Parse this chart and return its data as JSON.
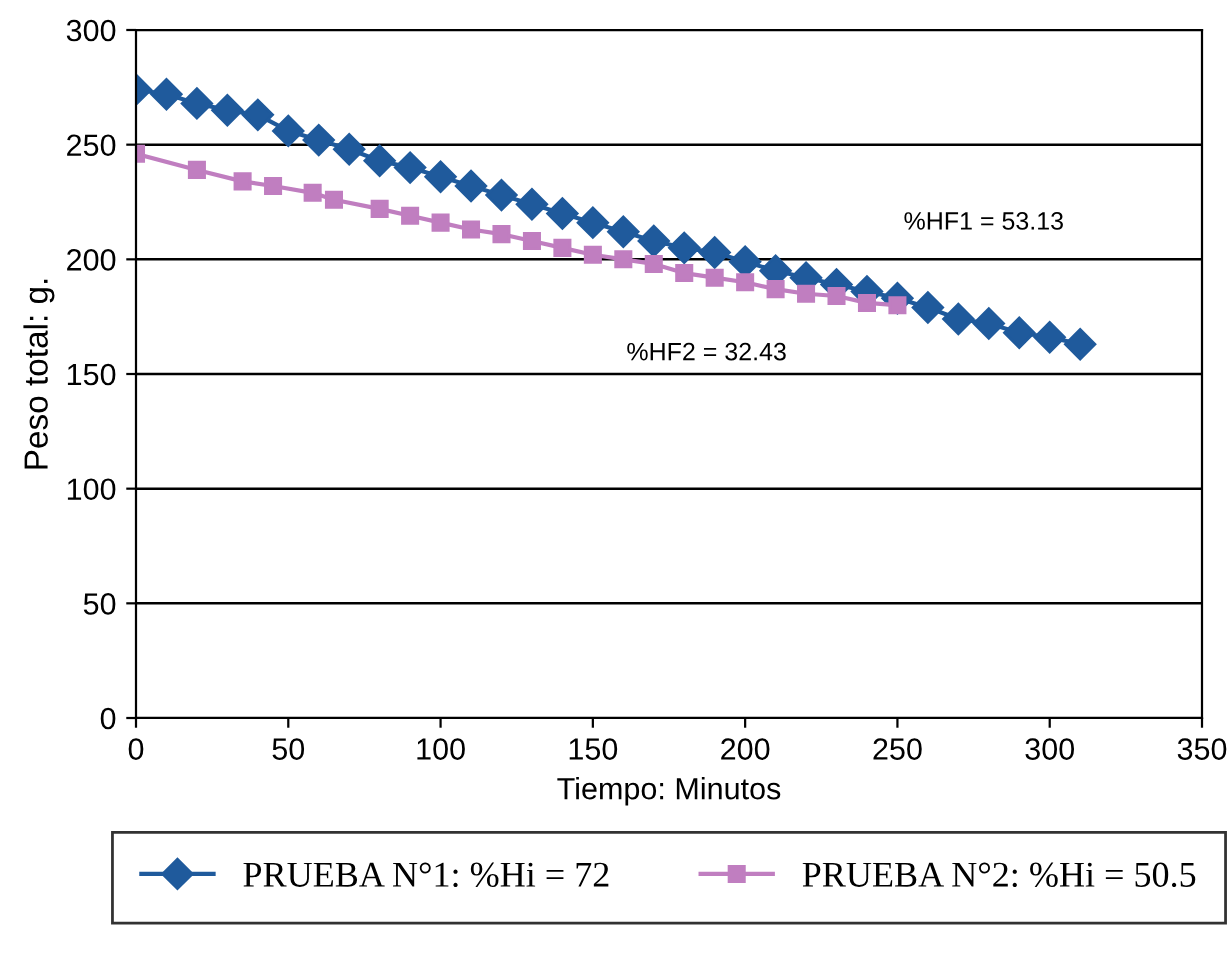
{
  "chart_data": {
    "type": "line",
    "xlabel": "Tiempo: Minutos",
    "ylabel": "Peso total: g.",
    "xlim": [
      0,
      350
    ],
    "xticks": [
      0,
      50,
      100,
      150,
      200,
      250,
      300,
      350
    ],
    "ylim": [
      0,
      300
    ],
    "yticks": [
      0,
      50,
      100,
      150,
      200,
      250,
      300
    ],
    "grid": "y",
    "legend": "bottom",
    "annotations": [
      "%HF1 = 53.13",
      "%HF2 = 32.43"
    ],
    "series": [
      {
        "name": "PRUEBA N°1: %Hi = 72",
        "color": "#1f5a9c",
        "marker": "diamond",
        "x": [
          0,
          10,
          20,
          30,
          40,
          50,
          60,
          70,
          80,
          90,
          100,
          110,
          120,
          130,
          140,
          150,
          160,
          170,
          180,
          190,
          200,
          210,
          220,
          230,
          240,
          250,
          260,
          270,
          280,
          290,
          300,
          310
        ],
        "values": [
          274,
          272,
          268,
          265,
          263,
          256,
          252,
          248,
          243,
          240,
          236,
          232,
          228,
          224,
          220,
          216,
          212,
          208,
          205,
          203,
          199,
          195,
          192,
          189,
          186,
          183,
          179,
          174,
          172,
          168,
          166,
          163
        ]
      },
      {
        "name": "PRUEBA N°2: %Hi = 50.5",
        "color": "#c07ec0",
        "marker": "square",
        "x": [
          0,
          20,
          35,
          45,
          58,
          65,
          80,
          90,
          100,
          110,
          120,
          130,
          140,
          150,
          160,
          170,
          180,
          190,
          200,
          210,
          220,
          230,
          240,
          250
        ],
        "values": [
          246,
          239,
          234,
          232,
          229,
          226,
          222,
          219,
          216,
          213,
          211,
          208,
          205,
          202,
          200,
          198,
          194,
          192,
          190,
          187,
          185,
          184,
          181,
          180
        ]
      }
    ]
  }
}
